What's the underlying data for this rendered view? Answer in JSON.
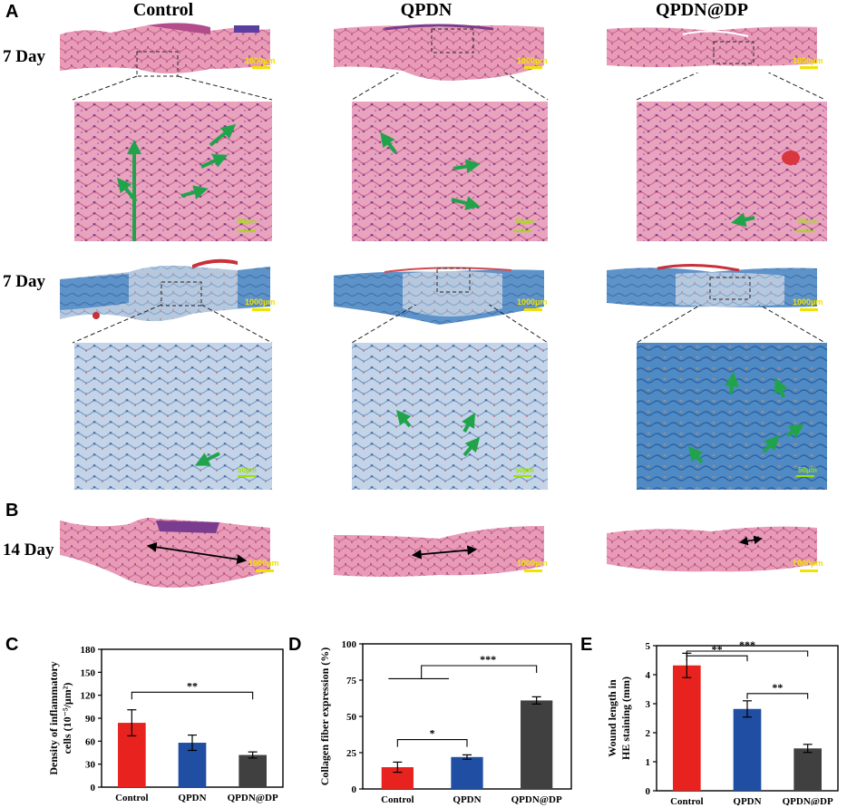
{
  "panels": {
    "A": "A",
    "B": "B",
    "C": "C",
    "D": "D",
    "E": "E"
  },
  "columns": [
    "Control",
    "QPDN",
    "QPDN@DP"
  ],
  "row_labels": {
    "he_7day": "7 Day",
    "masson_7day": "7 Day",
    "he_14day": "14 Day"
  },
  "scale_labels": {
    "overview": "1000μm",
    "zoom": "50μm"
  },
  "colors": {
    "he_pink": "#e79ab3",
    "he_dark": "#b9497f",
    "masson_blue": "#5d8fc6",
    "masson_light": "#b9cbe0",
    "arrow_green": "#21a34a",
    "bar_red": "#e8231f",
    "bar_blue": "#1f4ea3",
    "bar_dark": "#404040",
    "scale_yellow": "#f2e200"
  },
  "chart_data": [
    {
      "type": "bar",
      "panel": "C",
      "categories": [
        "Control",
        "QPDN",
        "QPDN@DP"
      ],
      "values": [
        84,
        58,
        42
      ],
      "errors": [
        17,
        10,
        4
      ],
      "ylabel_line1": "Density of inflammatory",
      "ylabel_line2": "cells (10⁻⁵/μm²)",
      "ylim": [
        0,
        180
      ],
      "yticks": [
        "0",
        "30",
        "60",
        "90",
        "120",
        "150",
        "180"
      ],
      "significance": [
        {
          "from": "Control",
          "to": "QPDN@DP",
          "label": "**"
        }
      ]
    },
    {
      "type": "bar",
      "panel": "D",
      "categories": [
        "Control",
        "QPDN",
        "QPDN@DP"
      ],
      "values": [
        15,
        22,
        61
      ],
      "errors": [
        3.5,
        1.5,
        2.5
      ],
      "ylabel": "Collagen fiber expression (%)",
      "ylim": [
        0,
        100
      ],
      "yticks": [
        "0",
        "25",
        "50",
        "75",
        "100"
      ],
      "significance": [
        {
          "from": "Control",
          "to": "QPDN",
          "label": "*"
        },
        {
          "from": "Control+QPDN",
          "to": "QPDN@DP",
          "label": "***"
        }
      ]
    },
    {
      "type": "bar",
      "panel": "E",
      "categories": [
        "Control",
        "QPDN",
        "QPDN@DP"
      ],
      "values": [
        4.32,
        2.82,
        1.46
      ],
      "errors": [
        0.42,
        0.28,
        0.14
      ],
      "ylabel_line1": "Wound length in",
      "ylabel_line2": "HE staining (mm)",
      "ylim": [
        0,
        5
      ],
      "yticks": [
        "0",
        "1",
        "2",
        "3",
        "4",
        "5"
      ],
      "significance": [
        {
          "from": "Control",
          "to": "QPDN",
          "label": "**"
        },
        {
          "from": "QPDN",
          "to": "QPDN@DP",
          "label": "**"
        },
        {
          "from": "Control",
          "to": "QPDN@DP",
          "label": "***"
        }
      ]
    }
  ]
}
